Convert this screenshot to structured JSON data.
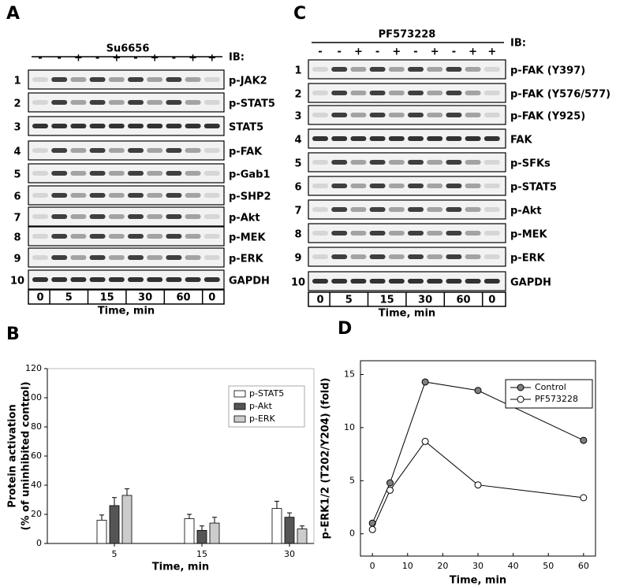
{
  "panel_a": {
    "label": "A",
    "treatment": "Su6656",
    "ib": "IB:",
    "lanes": [
      "-",
      "-",
      "+",
      "-",
      "+",
      "-",
      "+",
      "-",
      "+",
      "+"
    ],
    "rows": [
      {
        "number": "1",
        "label": "p-JAK2"
      },
      {
        "number": "2",
        "label": "p-STAT5"
      },
      {
        "number": "3",
        "label": "STAT5"
      },
      {
        "number": "4",
        "label": "p-FAK"
      },
      {
        "number": "5",
        "label": "p-Gab1"
      },
      {
        "number": "6",
        "label": "p-SHP2"
      },
      {
        "number": "7",
        "label": "p-Akt"
      },
      {
        "number": "8",
        "label": "p-MEK"
      },
      {
        "number": "9",
        "label": "p-ERK"
      },
      {
        "number": "10",
        "label": "GAPDH"
      }
    ],
    "times": [
      "0",
      "5",
      "15",
      "30",
      "60",
      "0"
    ],
    "time_label": "Time, min"
  },
  "panel_c": {
    "label": "C",
    "treatment": "PF573228",
    "ib": "IB:",
    "lanes": [
      "-",
      "-",
      "+",
      "-",
      "+",
      "-",
      "+",
      "-",
      "+",
      "+"
    ],
    "rows": [
      {
        "number": "1",
        "label": "p-FAK (Y397)"
      },
      {
        "number": "2",
        "label": "p-FAK (Y576/577)"
      },
      {
        "number": "3",
        "label": "p-FAK (Y925)"
      },
      {
        "number": "4",
        "label": "FAK"
      },
      {
        "number": "5",
        "label": "p-SFKs"
      },
      {
        "number": "6",
        "label": "p-STAT5"
      },
      {
        "number": "7",
        "label": "p-Akt"
      },
      {
        "number": "8",
        "label": "p-MEK"
      },
      {
        "number": "9",
        "label": "p-ERK"
      },
      {
        "number": "10",
        "label": "GAPDH"
      }
    ],
    "times": [
      "0",
      "5",
      "15",
      "30",
      "60",
      "0"
    ],
    "time_label": "Time, min"
  },
  "chart_data": [
    {
      "type": "bar",
      "panel_label": "B",
      "ylabel": [
        "Protein activation",
        "(% of uninhibited control)"
      ],
      "xlabel": "Time, min",
      "categories": [
        "5",
        "15",
        "30"
      ],
      "series": [
        {
          "name": "p-STAT5",
          "color": "#ffffff",
          "values": [
            16,
            17,
            24
          ],
          "errors": [
            3.5,
            3,
            5
          ]
        },
        {
          "name": "p-Akt",
          "color": "#555555",
          "values": [
            26,
            9,
            18
          ],
          "errors": [
            5.5,
            3,
            3
          ]
        },
        {
          "name": "p-ERK",
          "color": "#cccccc",
          "values": [
            33,
            14,
            10
          ],
          "errors": [
            4.5,
            4,
            2
          ]
        }
      ],
      "ylim": [
        0,
        120
      ],
      "yticks": [
        0,
        20,
        40,
        60,
        80,
        100,
        120
      ],
      "legend": "upper right"
    },
    {
      "type": "line",
      "panel_label": "D",
      "ylabel": "p-ERK1/2 (T202/Y204) (fold)",
      "xlabel": "Time, min",
      "x": [
        0,
        5,
        15,
        30,
        60
      ],
      "series": [
        {
          "name": "Control",
          "color": "#808080",
          "values": [
            1.0,
            4.8,
            14.3,
            13.5,
            8.8
          ]
        },
        {
          "name": "PF573228",
          "color": "#ffffff",
          "values": [
            0.4,
            4.1,
            8.7,
            4.6,
            3.4
          ]
        }
      ],
      "xlim": [
        -3.4,
        63.4
      ],
      "ylim": [
        -2.1,
        16.3
      ],
      "xticks": [
        0,
        10,
        20,
        30,
        40,
        50,
        60
      ],
      "yticks": [
        0,
        5,
        10,
        15
      ],
      "legend": "upper right"
    }
  ]
}
